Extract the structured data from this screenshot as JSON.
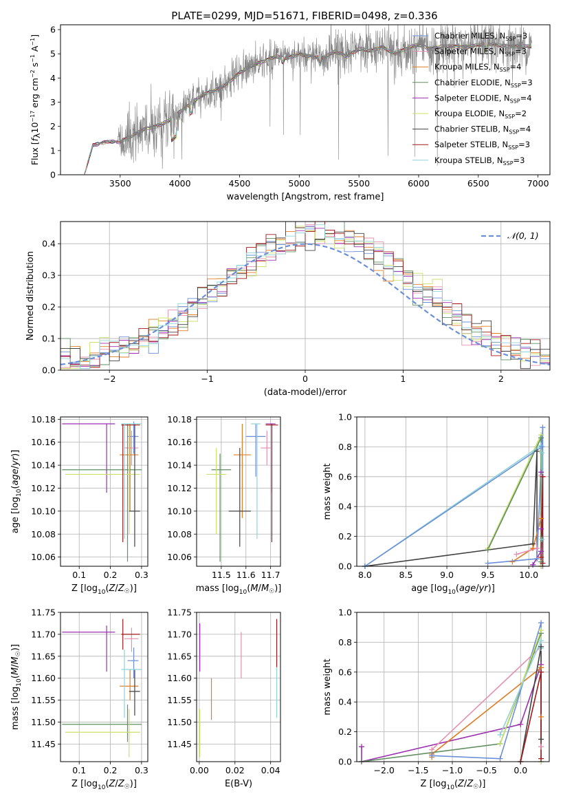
{
  "figure": {
    "title": "PLATE=0299, MJD=51671, FIBERID=0498, z=0.336",
    "colors": {
      "blue": "#6a8fd8",
      "orange": "#e07b22",
      "green": "#5f8f5f",
      "purple": "#9b2fb0",
      "yellow": "#c9e06a",
      "black": "#404040",
      "red": "#a01818",
      "cyan": "#8fd3d8",
      "pink": "#e58fb0",
      "grey": "#808080"
    }
  },
  "chart_data": [
    {
      "id": "spectrum",
      "type": "line",
      "title": "PLATE=0299, MJD=51671, FIBERID=0498, z=0.336",
      "xlabel": "wavelength [Angstrom, rest frame]",
      "ylabel": "Flux [f_λ 10^-17 erg cm^-2 s^-1 A^-1]",
      "xlim": [
        3000,
        7100
      ],
      "ylim": [
        0,
        6.2
      ],
      "xticks": [
        3500,
        4000,
        4500,
        5000,
        5500,
        6000,
        6500,
        7000
      ],
      "yticks": [
        0,
        1,
        2,
        3,
        4,
        5,
        6
      ],
      "grid": false,
      "legend_position": "right",
      "data_anchors": {
        "x": [
          3200,
          3270,
          3400,
          3500,
          3600,
          3700,
          3800,
          3900,
          4000,
          4100,
          4200,
          4300,
          4400,
          4500,
          4600,
          4700,
          4800,
          4900,
          5000,
          5100,
          5200,
          5300,
          5400,
          5500,
          5600,
          5700,
          5800,
          5900,
          6000,
          6100,
          6200,
          6400,
          6600,
          6800,
          6950
        ],
        "y": [
          0.0,
          1.2,
          1.4,
          1.35,
          1.6,
          1.9,
          2.0,
          2.2,
          2.6,
          3.0,
          3.3,
          3.5,
          3.8,
          4.2,
          4.5,
          4.7,
          4.9,
          4.8,
          5.0,
          4.9,
          4.8,
          5.1,
          4.9,
          5.2,
          5.1,
          5.3,
          5.0,
          5.2,
          5.4,
          5.2,
          5.3,
          5.3,
          5.4,
          5.3,
          5.3
        ]
      },
      "series": [
        {
          "name": "Chabrier MILES, N_SSP=3",
          "color": "#6a8fd8"
        },
        {
          "name": "Salpeter MILES, N_SSP=3",
          "color": "#e58fb0"
        },
        {
          "name": "Kroupa MILES, N_SSP=4",
          "color": "#e07b22"
        },
        {
          "name": "Chabrier ELODIE, N_SSP=3",
          "color": "#5f8f5f"
        },
        {
          "name": "Salpeter ELODIE, N_SSP=4",
          "color": "#9b2fb0"
        },
        {
          "name": "Kroupa ELODIE, N_SSP=2",
          "color": "#c9e06a"
        },
        {
          "name": "Chabrier STELIB, N_SSP=4",
          "color": "#404040"
        },
        {
          "name": "Salpeter STELIB, N_SSP=3",
          "color": "#a01818"
        },
        {
          "name": "Kroupa STELIB, N_SSP=3",
          "color": "#8fd3d8"
        }
      ]
    },
    {
      "id": "residuals",
      "type": "line",
      "xlabel": "(data-model)/error",
      "ylabel": "Normed distribution",
      "xlim": [
        -2.5,
        2.5
      ],
      "ylim": [
        0,
        0.47
      ],
      "xticks": [
        -2,
        -1,
        0,
        1,
        2
      ],
      "yticks": [
        0.0,
        0.1,
        0.2,
        0.3,
        0.4
      ],
      "grid": true,
      "legend": "𝒩(0, 1)",
      "legend_position": "top-right",
      "bin_width": 0.1
    },
    {
      "id": "age_vs_Z",
      "type": "scatter",
      "xlabel": "Z [log10(Z/Z☉)]",
      "ylabel": "age  [log10(age/yr)]",
      "xlim": [
        0.04,
        0.32
      ],
      "ylim": [
        10.052,
        10.182
      ],
      "xticks": [
        0.1,
        0.2,
        0.3
      ],
      "yticks": [
        10.06,
        10.08,
        10.1,
        10.12,
        10.14,
        10.16,
        10.18
      ],
      "grid": true,
      "errorbars": [
        {
          "color": "#6a8fd8",
          "x": 0.275,
          "y": 10.165,
          "xlo": 0.255,
          "xhi": 0.29,
          "ylo": 10.15,
          "yhi": 10.178
        },
        {
          "color": "#e58fb0",
          "x": 0.268,
          "y": 10.155,
          "xlo": 0.245,
          "xhi": 0.29,
          "ylo": 10.14,
          "yhi": 10.17
        },
        {
          "color": "#e07b22",
          "x": 0.263,
          "y": 10.149,
          "xlo": 0.23,
          "xhi": 0.29,
          "ylo": 10.1,
          "yhi": 10.176
        },
        {
          "color": "#5f8f5f",
          "x": 0.255,
          "y": 10.136,
          "xlo": 0.045,
          "xhi": 0.3,
          "ylo": 10.056,
          "yhi": 10.176
        },
        {
          "color": "#9b2fb0",
          "x": 0.188,
          "y": 10.176,
          "xlo": 0.045,
          "xhi": 0.215,
          "ylo": 10.116,
          "yhi": 10.176
        },
        {
          "color": "#c9e06a",
          "x": 0.26,
          "y": 10.132,
          "xlo": 0.055,
          "xhi": 0.295,
          "ylo": 10.08,
          "yhi": 10.176
        },
        {
          "color": "#404040",
          "x": 0.278,
          "y": 10.1,
          "xlo": 0.26,
          "xhi": 0.295,
          "ylo": 10.069,
          "yhi": 10.176
        },
        {
          "color": "#a01818",
          "x": 0.24,
          "y": 10.175,
          "xlo": 0.235,
          "xhi": 0.295,
          "ylo": 10.073,
          "yhi": 10.176
        },
        {
          "color": "#8fd3d8",
          "x": 0.245,
          "y": 10.176,
          "xlo": 0.235,
          "xhi": 0.3,
          "ylo": 10.076,
          "yhi": 10.176
        }
      ]
    },
    {
      "id": "age_vs_mass",
      "type": "scatter",
      "xlabel": "mass [log10(M/M☉)]",
      "ylabel": "",
      "xlim": [
        11.4,
        11.74
      ],
      "ylim": [
        10.052,
        10.182
      ],
      "xticks": [
        11.5,
        11.6,
        11.7
      ],
      "yticks": [
        10.06,
        10.08,
        10.1,
        10.12,
        10.14,
        10.16,
        10.18
      ],
      "grid": true,
      "errorbars": [
        {
          "color": "#6a8fd8",
          "x": 11.64,
          "y": 10.165,
          "xlo": 11.6,
          "xhi": 11.68,
          "ylo": 10.13,
          "yhi": 10.176
        },
        {
          "color": "#e58fb0",
          "x": 11.685,
          "y": 10.155,
          "xlo": 11.66,
          "xhi": 11.7,
          "ylo": 10.14,
          "yhi": 10.17
        },
        {
          "color": "#e07b22",
          "x": 11.585,
          "y": 10.149,
          "xlo": 11.55,
          "xhi": 11.62,
          "ylo": 10.094,
          "yhi": 10.176
        },
        {
          "color": "#5f8f5f",
          "x": 11.495,
          "y": 10.136,
          "xlo": 11.46,
          "xhi": 11.54,
          "ylo": 10.056,
          "yhi": 10.15
        },
        {
          "color": "#9b2fb0",
          "x": 11.705,
          "y": 10.176,
          "xlo": 11.68,
          "xhi": 11.72,
          "ylo": 10.116,
          "yhi": 10.176
        },
        {
          "color": "#c9e06a",
          "x": 11.48,
          "y": 10.132,
          "xlo": 11.44,
          "xhi": 11.52,
          "ylo": 10.08,
          "yhi": 10.155
        },
        {
          "color": "#404040",
          "x": 11.575,
          "y": 10.1,
          "xlo": 11.53,
          "xhi": 11.62,
          "ylo": 10.069,
          "yhi": 10.155
        },
        {
          "color": "#a01818",
          "x": 11.705,
          "y": 10.175,
          "xlo": 11.68,
          "xhi": 11.73,
          "ylo": 10.073,
          "yhi": 10.176
        },
        {
          "color": "#8fd3d8",
          "x": 11.645,
          "y": 10.176,
          "xlo": 11.62,
          "xhi": 11.66,
          "ylo": 10.076,
          "yhi": 10.176
        }
      ]
    },
    {
      "id": "massweight_vs_age",
      "type": "line",
      "xlabel": "age  [log10(age/yr)]",
      "ylabel": "mass weight",
      "xlim": [
        7.9,
        10.25
      ],
      "ylim": [
        0,
        1.0
      ],
      "xticks": [
        8.0,
        8.5,
        9.0,
        9.5,
        10.0
      ],
      "yticks": [
        0.0,
        0.2,
        0.4,
        0.6,
        0.8,
        1.0
      ],
      "grid": true,
      "series": [
        {
          "color": "#404040",
          "x": [
            8.0,
            10.05,
            10.1,
            10.1
          ],
          "y": [
            0.0,
            0.15,
            0.77,
            0.05
          ]
        },
        {
          "color": "#e07b22",
          "x": [
            9.8,
            10.05,
            10.15,
            10.15
          ],
          "y": [
            0.03,
            0.12,
            0.32,
            0.0
          ]
        },
        {
          "color": "#e58fb0",
          "x": [
            9.85,
            10.1,
            10.15
          ],
          "y": [
            0.08,
            0.12,
            0.61
          ]
        },
        {
          "color": "#9b2fb0",
          "x": [
            10.05,
            10.15,
            10.15,
            10.15
          ],
          "y": [
            0.01,
            0.1,
            0.63,
            0.25
          ]
        },
        {
          "color": "#6a8fd8",
          "x": [
            9.5,
            10.1,
            10.17,
            10.17
          ],
          "y": [
            0.02,
            0.05,
            0.93,
            0.0
          ]
        },
        {
          "color": "#c9e06a",
          "x": [
            9.5,
            10.15,
            10.15
          ],
          "y": [
            0.12,
            0.88,
            0.0
          ]
        },
        {
          "color": "#5f8f5f",
          "x": [
            9.5,
            10.15,
            10.15
          ],
          "y": [
            0.11,
            0.86,
            0.03
          ]
        },
        {
          "color": "#8fd3d8",
          "x": [
            8.0,
            10.15,
            10.16,
            10.16
          ],
          "y": [
            0.0,
            0.81,
            0.76,
            0.18
          ]
        },
        {
          "color": "#6a8fd8",
          "x": [
            8.0,
            10.16
          ],
          "y": [
            0.0,
            0.8
          ]
        },
        {
          "color": "#a01818",
          "x": [
            10.15,
            10.17,
            10.17
          ],
          "y": [
            0.06,
            0.6,
            0.02
          ]
        }
      ]
    },
    {
      "id": "mass_vs_Z",
      "type": "scatter",
      "xlabel": "Z [log10(Z/Z☉)]",
      "ylabel": "mass [log10(M/M☉)]",
      "xlim": [
        0.04,
        0.32
      ],
      "ylim": [
        11.41,
        11.75
      ],
      "xticks": [
        0.1,
        0.2,
        0.3
      ],
      "yticks": [
        11.45,
        11.5,
        11.55,
        11.6,
        11.65,
        11.7,
        11.75
      ],
      "grid": true,
      "errorbars": [
        {
          "color": "#6a8fd8",
          "x": 0.275,
          "y": 11.64,
          "xlo": 0.255,
          "xhi": 0.29,
          "ylo": 11.6,
          "yhi": 11.67
        },
        {
          "color": "#e58fb0",
          "x": 0.268,
          "y": 11.69,
          "xlo": 0.245,
          "xhi": 0.29,
          "ylo": 11.66,
          "yhi": 11.715
        },
        {
          "color": "#e07b22",
          "x": 0.263,
          "y": 11.582,
          "xlo": 0.23,
          "xhi": 0.29,
          "ylo": 11.55,
          "yhi": 11.62
        },
        {
          "color": "#5f8f5f",
          "x": 0.255,
          "y": 11.495,
          "xlo": 0.045,
          "xhi": 0.3,
          "ylo": 11.455,
          "yhi": 11.54
        },
        {
          "color": "#9b2fb0",
          "x": 0.188,
          "y": 11.705,
          "xlo": 0.045,
          "xhi": 0.215,
          "ylo": 11.615,
          "yhi": 11.72
        },
        {
          "color": "#c9e06a",
          "x": 0.26,
          "y": 11.477,
          "xlo": 0.055,
          "xhi": 0.295,
          "ylo": 11.42,
          "yhi": 11.53
        },
        {
          "color": "#404040",
          "x": 0.278,
          "y": 11.57,
          "xlo": 0.26,
          "xhi": 0.295,
          "ylo": 11.515,
          "yhi": 11.62
        },
        {
          "color": "#a01818",
          "x": 0.24,
          "y": 11.7,
          "xlo": 0.235,
          "xhi": 0.295,
          "ylo": 11.665,
          "yhi": 11.735
        },
        {
          "color": "#8fd3d8",
          "x": 0.245,
          "y": 11.62,
          "xlo": 0.235,
          "xhi": 0.3,
          "ylo": 11.51,
          "yhi": 11.665
        }
      ]
    },
    {
      "id": "mass_vs_ebv",
      "type": "scatter",
      "xlabel": "E(B-V)",
      "ylabel": "",
      "xlim": [
        -0.0015,
        0.0455
      ],
      "ylim": [
        11.41,
        11.75
      ],
      "xticks": [
        0.0,
        0.02,
        0.04
      ],
      "yticks": [
        11.45,
        11.5,
        11.55,
        11.6,
        11.65,
        11.7,
        11.75
      ],
      "grid": true,
      "errorbars": [
        {
          "color": "#9b2fb0",
          "x": 0.0003,
          "y": 11.69,
          "ylo": 11.615,
          "yhi": 11.725
        },
        {
          "color": "#c9e06a",
          "x": 0.0003,
          "y": 11.477,
          "ylo": 11.42,
          "yhi": 11.53
        },
        {
          "color": "#e07b22",
          "x": 0.0068,
          "y": 11.56,
          "ylo": 11.505,
          "yhi": 11.6
        },
        {
          "color": "#e58fb0",
          "x": 0.0235,
          "y": 11.66,
          "ylo": 11.6,
          "yhi": 11.705
        },
        {
          "color": "#a01818",
          "x": 0.0434,
          "y": 11.7,
          "ylo": 11.625,
          "yhi": 11.735
        },
        {
          "color": "#8fd3d8",
          "x": 0.0434,
          "y": 11.56,
          "ylo": 11.51,
          "yhi": 11.625
        }
      ]
    },
    {
      "id": "massweight_vs_Z",
      "type": "line",
      "xlabel": "Z [log10(Z/Z☉)]",
      "ylabel": "mass weight",
      "xlim": [
        -2.4,
        0.42
      ],
      "ylim": [
        0,
        1.0
      ],
      "xticks": [
        -2.0,
        -1.5,
        -1.0,
        -0.5,
        0.0
      ],
      "yticks": [
        0.0,
        0.2,
        0.4,
        0.6,
        0.8,
        1.0
      ],
      "grid": true,
      "series": [
        {
          "color": "#9b2fb0",
          "x": [
            -2.33,
            -2.33,
            0.0,
            0.3
          ],
          "y": [
            0.1,
            0.0,
            0.25,
            0.65
          ]
        },
        {
          "color": "#e07b22",
          "x": [
            -1.3,
            -1.3,
            0.3,
            0.3
          ],
          "y": [
            0.03,
            0.05,
            0.63,
            0.3
          ]
        },
        {
          "color": "#e58fb0",
          "x": [
            -1.3,
            0.3,
            0.3
          ],
          "y": [
            0.08,
            0.77,
            0.1
          ]
        },
        {
          "color": "#5f8f5f",
          "x": [
            -2.33,
            -0.3,
            0.3
          ],
          "y": [
            0.0,
            0.12,
            0.86
          ]
        },
        {
          "color": "#6a8fd8",
          "x": [
            -1.3,
            -0.3,
            0.3,
            0.3
          ],
          "y": [
            0.04,
            0.02,
            0.93,
            0.0
          ]
        },
        {
          "color": "#c9e06a",
          "x": [
            -0.3,
            0.3,
            0.3
          ],
          "y": [
            0.12,
            0.88,
            0.0
          ]
        },
        {
          "color": "#8fd3d8",
          "x": [
            -0.3,
            0.3,
            0.3
          ],
          "y": [
            0.18,
            0.81,
            0.76
          ]
        },
        {
          "color": "#404040",
          "x": [
            0.0,
            0.3,
            0.3
          ],
          "y": [
            0.0,
            0.77,
            0.15
          ]
        },
        {
          "color": "#a01818",
          "x": [
            0.0,
            0.3,
            0.3
          ],
          "y": [
            0.0,
            0.6,
            0.02
          ]
        }
      ]
    }
  ]
}
